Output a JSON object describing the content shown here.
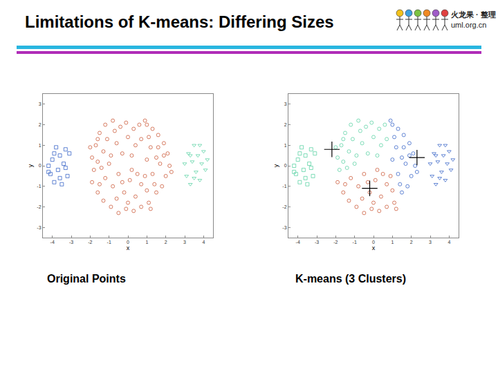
{
  "title": "Limitations of K-means: Differing Sizes",
  "logo": {
    "line1": "火龙果 · 整理",
    "line2": "uml.org.cn"
  },
  "chart_data": [
    {
      "type": "scatter",
      "caption": "Original Points",
      "xlabel": "x",
      "ylabel": "y",
      "xlim": [
        -4.5,
        4.5
      ],
      "ylim": [
        -3.5,
        3.5
      ],
      "xticks": [
        -4,
        -3,
        -2,
        -1,
        0,
        1,
        2,
        3,
        4
      ],
      "yticks": [
        -3,
        -2,
        -1,
        0,
        1,
        2,
        3
      ],
      "grid": false,
      "series": [
        {
          "color": "#3a66c8",
          "marker": "square",
          "x": [
            -4.2,
            -4.1,
            -4.0,
            -3.9,
            -3.8,
            -3.7,
            -3.6,
            -3.5,
            -3.4,
            -3.3,
            -3.2,
            -3.1,
            -3.9,
            -4.2,
            -3.6,
            -3.3
          ],
          "y": [
            0.0,
            -0.4,
            0.3,
            -0.8,
            0.9,
            -0.2,
            0.5,
            -0.9,
            0.1,
            0.8,
            -0.5,
            0.6,
            0.6,
            -0.3,
            -0.6,
            -0.1
          ]
        },
        {
          "color": "#cc5a3a",
          "marker": "circle",
          "x": [
            -1.9,
            -1.7,
            -1.5,
            -1.2,
            -0.8,
            -0.4,
            -0.1,
            0.3,
            0.6,
            -1.8,
            -1.6,
            -1.3,
            -1.1,
            -0.9,
            -0.6,
            -0.3,
            0.0,
            0.4,
            -1.4,
            -2.0,
            -0.7,
            0.2,
            -1.0,
            -1.6,
            0.7,
            1.0,
            1.3,
            1.6,
            1.9,
            2.1,
            2.2,
            2.0,
            1.8,
            1.5,
            1.2,
            1.5,
            1.1,
            1.7,
            1.3,
            1.9,
            1.0,
            2.3,
            1.4,
            0.9,
            1.6,
            -1.9,
            -1.6,
            -1.3,
            -0.9,
            -0.5,
            -0.1,
            0.3,
            0.7,
            1.1,
            -1.2,
            -0.8,
            -0.5,
            -0.2,
            0.1,
            0.4,
            0.7,
            1.0,
            -0.6,
            0.2,
            0.5,
            -1.5,
            1.2,
            0.9,
            -0.3,
            0.0
          ],
          "y": [
            0.4,
            1.0,
            1.6,
            2.0,
            2.2,
            1.9,
            2.1,
            1.8,
            2.0,
            -0.2,
            0.2,
            0.7,
            1.3,
            0.5,
            1.1,
            0.6,
            1.4,
            1.0,
            -0.1,
            0.9,
            1.7,
            0.5,
            0.1,
            1.3,
            1.3,
            2.0,
            1.8,
            1.5,
            1.1,
            0.6,
            0.0,
            -0.5,
            -1.0,
            -1.3,
            0.9,
            0.4,
            1.4,
            0.1,
            -0.4,
            0.5,
            0.3,
            -0.3,
            -0.9,
            2.2,
            0.9,
            -0.8,
            -1.3,
            -1.7,
            -2.0,
            -2.3,
            -2.1,
            -2.2,
            -2.0,
            -1.8,
            -0.6,
            -1.0,
            -0.4,
            -1.3,
            -0.7,
            -1.5,
            -0.9,
            -1.2,
            -1.6,
            -0.2,
            -0.4,
            -0.9,
            -2.1,
            -0.5,
            -0.8,
            -1.8
          ]
        },
        {
          "color": "#5ed3a6",
          "marker": "triangle-down",
          "x": [
            3.0,
            3.1,
            3.2,
            3.3,
            3.4,
            3.5,
            3.6,
            3.7,
            3.8,
            3.9,
            4.0,
            4.1,
            4.2,
            3.5,
            3.3,
            3.8
          ],
          "y": [
            0.1,
            -0.5,
            0.6,
            -0.9,
            0.2,
            1.0,
            -0.3,
            0.5,
            -0.7,
            0.1,
            0.7,
            -0.2,
            0.3,
            -0.6,
            0.5,
            1.0
          ]
        }
      ]
    },
    {
      "type": "scatter",
      "caption": "K-means (3 Clusters)",
      "xlabel": "x",
      "ylabel": "y",
      "xlim": [
        -4.5,
        4.5
      ],
      "ylim": [
        -3.5,
        3.5
      ],
      "xticks": [
        -4,
        -3,
        -2,
        -1,
        0,
        1,
        2,
        3,
        4
      ],
      "yticks": [
        -3,
        -2,
        -1,
        0,
        1,
        2,
        3
      ],
      "grid": false,
      "series": [
        {
          "color": "#5ed3a6",
          "marker": "square",
          "x": [
            -4.2,
            -4.1,
            -4.0,
            -3.9,
            -3.8,
            -3.7,
            -3.6,
            -3.5,
            -3.4,
            -3.3,
            -3.2,
            -3.1,
            -3.9,
            -4.2,
            -3.6,
            -3.3
          ],
          "y": [
            0.0,
            -0.4,
            0.3,
            -0.8,
            0.9,
            -0.2,
            0.5,
            -0.9,
            0.1,
            0.8,
            -0.5,
            0.6,
            0.6,
            -0.3,
            -0.6,
            -0.1
          ]
        },
        {
          "color": "#5ed3a6",
          "marker": "circle",
          "x": [
            -1.9,
            -1.7,
            -1.5,
            -1.2,
            -0.8,
            -0.4,
            -0.1,
            0.3,
            0.6,
            -1.8,
            -1.6,
            -1.3,
            -1.1,
            -0.9,
            -0.6,
            -0.3,
            0.0,
            0.4,
            -1.4,
            -2.0,
            -0.7,
            0.2,
            -1.0,
            -1.6,
            0.7
          ],
          "y": [
            0.4,
            1.0,
            1.6,
            2.0,
            2.2,
            1.9,
            2.1,
            1.8,
            2.0,
            -0.2,
            0.2,
            0.7,
            1.3,
            0.5,
            1.1,
            0.6,
            1.4,
            1.0,
            -0.1,
            0.9,
            1.7,
            0.5,
            0.1,
            1.3,
            1.3
          ]
        },
        {
          "color": "#3a66c8",
          "marker": "circle",
          "x": [
            1.0,
            1.3,
            1.6,
            1.9,
            2.1,
            2.2,
            2.0,
            1.8,
            1.5,
            1.2,
            1.5,
            1.1,
            1.7,
            1.3,
            1.9,
            1.0,
            2.3,
            1.4,
            0.9,
            1.6
          ],
          "y": [
            2.0,
            1.8,
            1.5,
            1.1,
            0.6,
            0.0,
            -0.5,
            -1.0,
            -1.3,
            0.9,
            0.4,
            1.4,
            0.1,
            -0.4,
            0.5,
            0.3,
            -0.3,
            -0.9,
            2.2,
            0.9
          ]
        },
        {
          "color": "#3a66c8",
          "marker": "triangle-down",
          "x": [
            3.0,
            3.1,
            3.2,
            3.3,
            3.4,
            3.5,
            3.6,
            3.7,
            3.8,
            3.9,
            4.0,
            4.1,
            4.2,
            3.5,
            3.3,
            3.8
          ],
          "y": [
            0.1,
            -0.5,
            0.6,
            -0.9,
            0.2,
            1.0,
            -0.3,
            0.5,
            -0.7,
            0.1,
            0.7,
            -0.2,
            0.3,
            -0.6,
            0.5,
            1.0
          ]
        },
        {
          "color": "#cc5a3a",
          "marker": "circle",
          "x": [
            -1.9,
            -1.6,
            -1.3,
            -0.9,
            -0.5,
            -0.1,
            0.3,
            0.7,
            1.1,
            -1.2,
            -0.8,
            -0.5,
            -0.2,
            0.1,
            0.4,
            0.7,
            1.0,
            -0.6,
            0.2,
            0.5,
            -1.5,
            1.2,
            0.9,
            -0.3,
            0.0
          ],
          "y": [
            -0.8,
            -1.3,
            -1.7,
            -2.0,
            -2.3,
            -2.1,
            -2.2,
            -2.0,
            -1.8,
            -0.6,
            -1.0,
            -0.4,
            -1.3,
            -0.7,
            -1.5,
            -0.9,
            -1.2,
            -1.6,
            -0.2,
            -0.4,
            -0.9,
            -2.1,
            -0.5,
            -0.8,
            -1.8
          ]
        },
        {
          "color": "#000000",
          "marker": "plus",
          "x": [
            -2.2,
            2.3,
            -0.2
          ],
          "y": [
            0.8,
            0.4,
            -1.1
          ]
        }
      ]
    }
  ]
}
